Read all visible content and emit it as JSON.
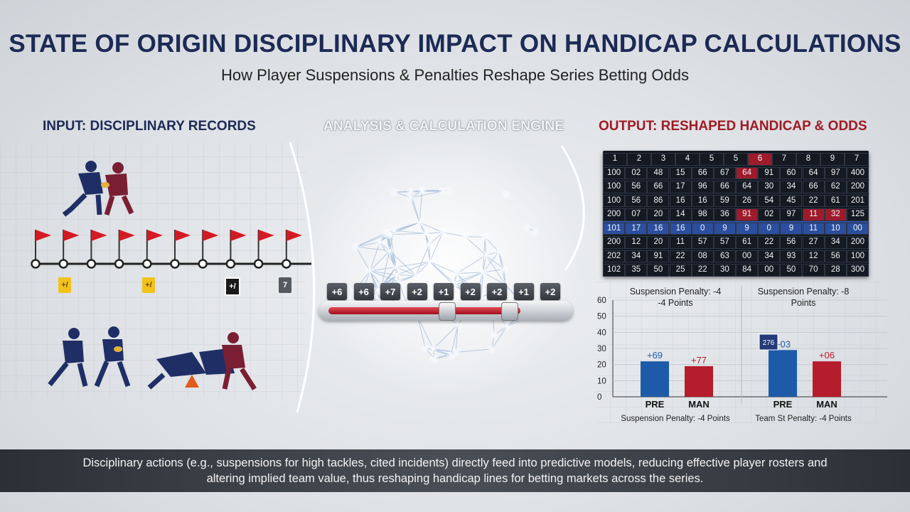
{
  "header": {
    "title": "STATE OF ORIGIN DISCIPLINARY IMPACT ON HANDICAP CALCULATIONS",
    "subtitle": "How Player Suspensions & Penalties Reshape Series Betting Odds"
  },
  "sections": {
    "input": "INPUT: DISCIPLINARY RECORDS",
    "engine": "ANALYSIS & CALCULATION ENGINE",
    "output": "OUTPUT: RESHAPED HANDICAP & ODDS"
  },
  "timeline": {
    "flag_count": 10,
    "cards": [
      {
        "text": "+/",
        "color": "#f2c21b"
      },
      {
        "text": "+/",
        "color": "#f2c21b"
      },
      {
        "text": "+/",
        "color": "#1a1a1a"
      },
      {
        "text": "7",
        "color": "#555a61"
      }
    ]
  },
  "engine": {
    "factors": [
      "+6",
      "+6",
      "+7",
      "+2",
      "+1",
      "+2",
      "+2",
      "+1",
      "+2"
    ]
  },
  "board": {
    "rows": [
      [
        "1",
        "2",
        "3",
        "4",
        "5",
        "5",
        "6",
        "7",
        "8",
        "9",
        "7"
      ],
      [
        "100",
        "02",
        "48",
        "15",
        "66",
        "67",
        "64",
        "91",
        "60",
        "64",
        "97",
        "400"
      ],
      [
        "100",
        "56",
        "66",
        "17",
        "96",
        "66",
        "64",
        "30",
        "34",
        "66",
        "62",
        "200"
      ],
      [
        "100",
        "56",
        "86",
        "16",
        "16",
        "59",
        "26",
        "54",
        "45",
        "22",
        "61",
        "201"
      ],
      [
        "200",
        "07",
        "20",
        "14",
        "98",
        "36",
        "91",
        "02",
        "97",
        "11",
        "32",
        "125"
      ],
      [
        "101",
        "17",
        "16",
        "16",
        "0",
        "9",
        "9",
        "0",
        "9",
        "11",
        "10",
        "00"
      ],
      [
        "200",
        "12",
        "20",
        "11",
        "57",
        "57",
        "61",
        "22",
        "56",
        "27",
        "34",
        "200"
      ],
      [
        "202",
        "34",
        "91",
        "22",
        "08",
        "63",
        "00",
        "34",
        "93",
        "12",
        "56",
        "100"
      ],
      [
        "102",
        "35",
        "50",
        "25",
        "22",
        "30",
        "84",
        "00",
        "50",
        "70",
        "28",
        "300"
      ]
    ],
    "highlight_cells": [
      [
        0,
        6
      ],
      [
        1,
        6
      ],
      [
        4,
        6
      ],
      [
        4,
        9
      ],
      [
        4,
        10
      ]
    ]
  },
  "chart_data": [
    {
      "type": "bar",
      "title": "Suspension Penalty: -4",
      "subtitle": "-4 Points",
      "footer": "Suspension Penalty: -4 Points",
      "categories": [
        "PRE",
        "MAN"
      ],
      "values": [
        22,
        19
      ],
      "value_labels": [
        "+69",
        "+77"
      ],
      "colors": [
        "#1d5ba8",
        "#b51c2c"
      ],
      "yticks": [
        0,
        10,
        20,
        30,
        40,
        50,
        60
      ],
      "ylim": [
        0,
        60
      ]
    },
    {
      "type": "bar",
      "title": "Suspension Penalty: -8",
      "subtitle": "Points",
      "footer": "Team St Penalty: -4 Points",
      "categories": [
        "PRE",
        "MAN"
      ],
      "values": [
        29,
        22
      ],
      "value_labels": [
        "+03",
        "+06"
      ],
      "annotation": "276",
      "colors": [
        "#1d5ba8",
        "#b51c2c"
      ],
      "ylim": [
        0,
        60
      ]
    }
  ],
  "footer": {
    "text": "Disciplinary actions (e.g., suspensions for high tackles, cited incidents) directly feed into predictive models, reducing effective player rosters and altering implied team value, thus reshaping handicap lines for betting markets across the series."
  }
}
